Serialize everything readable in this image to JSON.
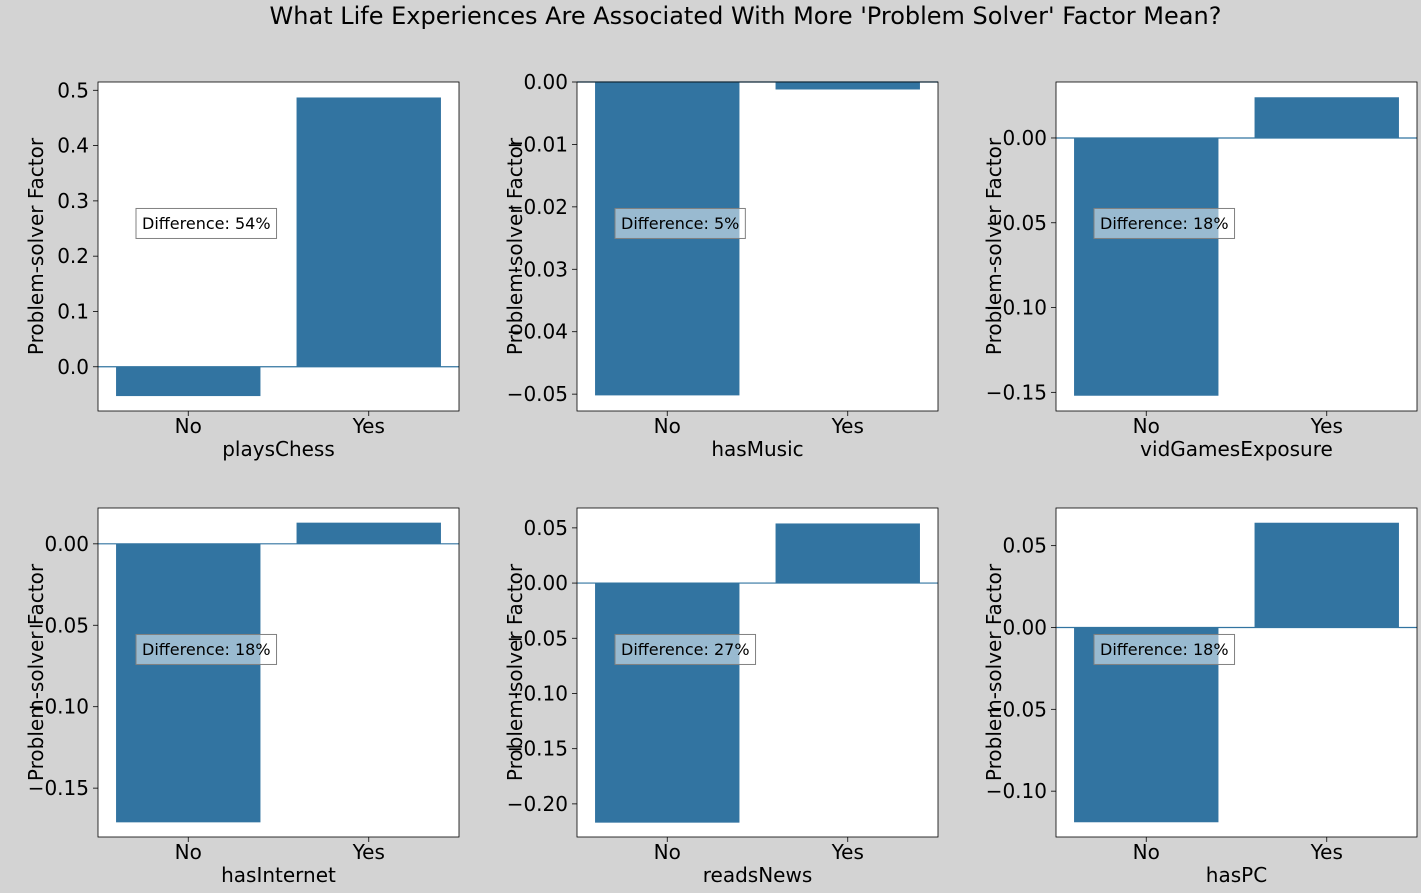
{
  "title": "What Life Experiences Are Associated With More 'Problem Solver' Factor Mean?",
  "colors": {
    "figure_background": "#d3d3d3",
    "axes_background": "#ffffff",
    "bar": "#3274a1",
    "annotation_box": "#ffffff"
  },
  "chart_data": [
    {
      "type": "bar",
      "title": "",
      "categories": [
        "No",
        "Yes"
      ],
      "values": [
        -0.053,
        0.487
      ],
      "xlabel": "playsChess",
      "ylabel": "Problem-solver Factor",
      "ylim": [
        -0.08,
        0.515
      ],
      "yticks": [
        0.0,
        0.1,
        0.2,
        0.3,
        0.4,
        0.5
      ],
      "ytick_labels": [
        "0.0",
        "0.1",
        "0.2",
        "0.3",
        "0.4",
        "0.5"
      ],
      "annotation": "Difference: 54%",
      "grid": false
    },
    {
      "type": "bar",
      "title": "",
      "categories": [
        "No",
        "Yes"
      ],
      "values": [
        -0.0502,
        -0.0012
      ],
      "xlabel": "hasMusic",
      "ylabel": "Problem-solver Factor",
      "ylim": [
        -0.0527,
        0.0
      ],
      "yticks": [
        0.0,
        -0.01,
        -0.02,
        -0.03,
        -0.04,
        -0.05
      ],
      "ytick_labels": [
        "0.00",
        "−0.01",
        "−0.02",
        "−0.03",
        "−0.04",
        "−0.05"
      ],
      "annotation": "Difference: 5%",
      "grid": false
    },
    {
      "type": "bar",
      "title": "",
      "categories": [
        "No",
        "Yes"
      ],
      "values": [
        -0.152,
        0.024
      ],
      "xlabel": "vidGamesExposure",
      "ylabel": "Problem-solver Factor",
      "ylim": [
        -0.161,
        0.033
      ],
      "yticks": [
        0.0,
        -0.05,
        -0.1,
        -0.15
      ],
      "ytick_labels": [
        "0.00",
        "−0.05",
        "−0.10",
        "−0.15"
      ],
      "annotation": "Difference: 18%",
      "grid": false
    },
    {
      "type": "bar",
      "title": "",
      "categories": [
        "No",
        "Yes"
      ],
      "values": [
        -0.171,
        0.013
      ],
      "xlabel": "hasInternet",
      "ylabel": "Problem-solver Factor",
      "ylim": [
        -0.18,
        0.022
      ],
      "yticks": [
        0.0,
        -0.05,
        -0.1,
        -0.15
      ],
      "ytick_labels": [
        "0.00",
        "−0.05",
        "−0.10",
        "−0.15"
      ],
      "annotation": "Difference: 18%",
      "grid": false
    },
    {
      "type": "bar",
      "title": "",
      "categories": [
        "No",
        "Yes"
      ],
      "values": [
        -0.217,
        0.054
      ],
      "xlabel": "readsNews",
      "ylabel": "Problem-solver Factor",
      "ylim": [
        -0.23,
        0.068
      ],
      "yticks": [
        0.05,
        0.0,
        -0.05,
        -0.1,
        -0.15,
        -0.2
      ],
      "ytick_labels": [
        "0.05",
        "0.00",
        "−0.05",
        "−0.10",
        "−0.15",
        "−0.20"
      ],
      "annotation": "Difference: 27%",
      "grid": false
    },
    {
      "type": "bar",
      "title": "",
      "categories": [
        "No",
        "Yes"
      ],
      "values": [
        -0.119,
        0.064
      ],
      "xlabel": "hasPC",
      "ylabel": "Problem-solver Factor",
      "ylim": [
        -0.128,
        0.073
      ],
      "yticks": [
        0.05,
        0.0,
        -0.05,
        -0.1
      ],
      "ytick_labels": [
        "0.05",
        "0.00",
        "−0.05",
        "−0.10"
      ],
      "annotation": "Difference: 18%",
      "grid": false
    }
  ]
}
